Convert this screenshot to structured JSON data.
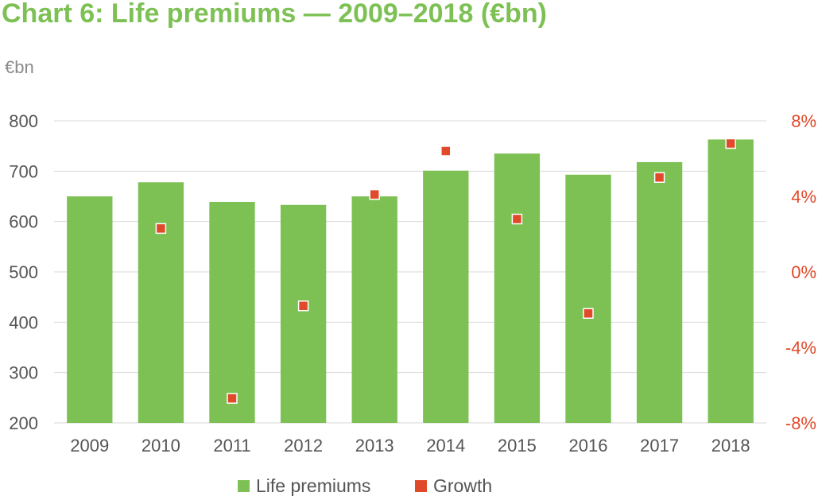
{
  "title": "Chart 6: Life premiums — 2009–2018 (€bn)",
  "colors": {
    "title": "#7dc155",
    "bar": "#7dc155",
    "marker": "#e04a2a",
    "right_axis": "#e04a2a",
    "grid": "#d9d9d9",
    "left_axis": "#555555"
  },
  "chart_data": {
    "type": "bar",
    "title": "Chart 6: Life premiums — 2009–2018 (€bn)",
    "ylabel": "€bn",
    "categories": [
      "2009",
      "2010",
      "2011",
      "2012",
      "2013",
      "2014",
      "2015",
      "2016",
      "2017",
      "2018"
    ],
    "series": [
      {
        "name": "Life premiums",
        "type": "bar",
        "axis": "left",
        "values": [
          650,
          678,
          639,
          633,
          650,
          701,
          735,
          693,
          718,
          763
        ]
      },
      {
        "name": "Growth",
        "type": "scatter",
        "axis": "right",
        "values": [
          null,
          2.3,
          -6.7,
          -1.8,
          4.1,
          6.4,
          2.8,
          -2.2,
          5.0,
          6.8
        ]
      }
    ],
    "ylim": [
      200,
      800
    ],
    "yticks": [
      "200",
      "300",
      "400",
      "500",
      "600",
      "700",
      "800"
    ],
    "y2lim": [
      -8,
      8
    ],
    "y2ticks": [
      "-8%",
      "-4%",
      "0%",
      "4%",
      "8%"
    ],
    "grid": true,
    "legend": "bottom"
  }
}
